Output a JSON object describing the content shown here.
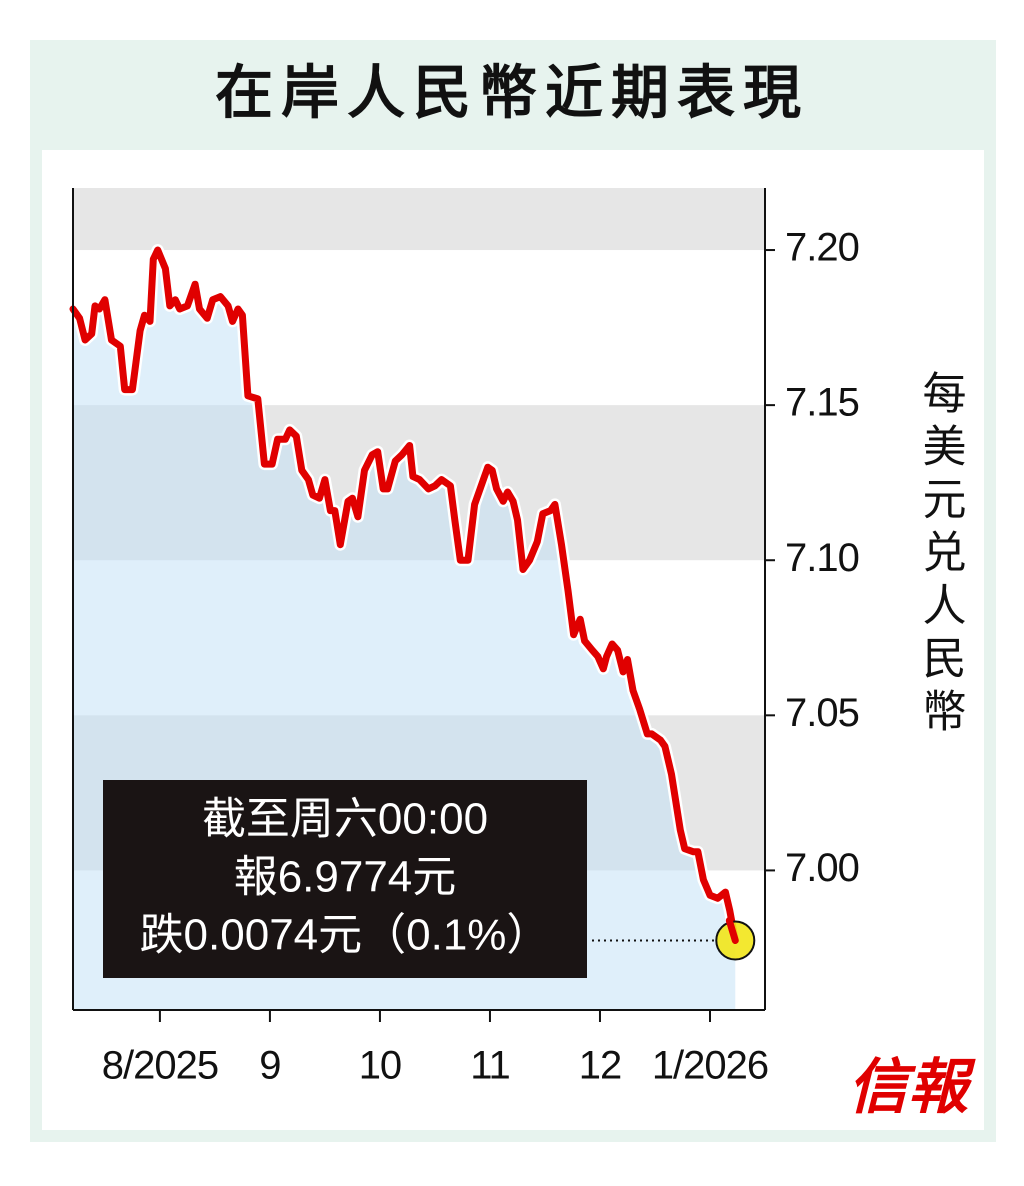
{
  "chart_data": {
    "type": "line",
    "title": "在岸人民幣近期表現",
    "y_axis_label": "每美元兑人民幣",
    "annotation": [
      "截至周六00:00",
      "報6.9774元",
      "跌0.0074元（0.1%）"
    ],
    "logo": "信報",
    "color": "#e00000",
    "area_color": "#bfe0f5",
    "band_color": "#e6e6e6",
    "x": [
      7.21,
      7.27,
      7.32,
      7.38,
      7.41,
      7.45,
      7.5,
      7.56,
      7.64,
      7.68,
      7.75,
      7.82,
      7.86,
      7.91,
      7.94,
      7.98,
      8.05,
      8.09,
      8.14,
      8.18,
      8.25,
      8.32,
      8.36,
      8.43,
      8.48,
      8.55,
      8.62,
      8.66,
      8.71,
      8.75,
      8.8,
      8.89,
      8.95,
      9.02,
      9.07,
      9.14,
      9.18,
      9.24,
      9.29,
      9.35,
      9.39,
      9.45,
      9.5,
      9.55,
      9.59,
      9.64,
      9.71,
      9.75,
      9.8,
      9.86,
      9.93,
      9.98,
      10.03,
      10.07,
      10.14,
      10.2,
      10.27,
      10.3,
      10.36,
      10.44,
      10.5,
      10.56,
      10.64,
      10.68,
      10.73,
      10.8,
      10.86,
      10.94,
      10.98,
      11.02,
      11.06,
      11.12,
      11.16,
      11.21,
      11.25,
      11.3,
      11.36,
      11.43,
      11.48,
      11.55,
      11.59,
      11.65,
      11.71,
      11.76,
      11.82,
      11.86,
      11.93,
      11.98,
      12.03,
      12.06,
      12.11,
      12.16,
      12.21,
      12.25,
      12.3,
      12.36,
      12.43,
      12.47,
      12.55,
      12.59,
      12.65,
      12.73,
      12.77,
      12.85,
      12.89,
      12.94,
      13.0,
      13.07,
      13.14,
      13.18,
      13.23
    ],
    "values": [
      7.181,
      7.178,
      7.171,
      7.173,
      7.182,
      7.181,
      7.184,
      7.171,
      7.169,
      7.155,
      7.155,
      7.174,
      7.179,
      7.177,
      7.197,
      7.2,
      7.194,
      7.182,
      7.184,
      7.181,
      7.182,
      7.189,
      7.181,
      7.178,
      7.184,
      7.185,
      7.182,
      7.177,
      7.181,
      7.179,
      7.153,
      7.152,
      7.131,
      7.131,
      7.139,
      7.139,
      7.142,
      7.14,
      7.129,
      7.126,
      7.121,
      7.12,
      7.126,
      7.116,
      7.116,
      7.105,
      7.119,
      7.12,
      7.114,
      7.129,
      7.134,
      7.135,
      7.123,
      7.123,
      7.132,
      7.134,
      7.137,
      7.127,
      7.126,
      7.123,
      7.124,
      7.126,
      7.124,
      7.113,
      7.1,
      7.1,
      7.118,
      7.126,
      7.13,
      7.129,
      7.123,
      7.119,
      7.122,
      7.119,
      7.113,
      7.097,
      7.1,
      7.106,
      7.115,
      7.116,
      7.118,
      7.105,
      7.09,
      7.076,
      7.081,
      7.074,
      7.071,
      7.069,
      7.065,
      7.069,
      7.073,
      7.071,
      7.064,
      7.068,
      7.058,
      7.052,
      7.044,
      7.044,
      7.042,
      7.04,
      7.031,
      7.013,
      7.007,
      7.006,
      7.006,
      6.997,
      6.992,
      6.991,
      6.993,
      6.987,
      6.9774
    ],
    "xlim": [
      7.21,
      13.5
    ],
    "xticks": [
      {
        "value": 8,
        "label": "8/2025"
      },
      9,
      10,
      11,
      12,
      {
        "value": 13,
        "label": "1/2026"
      }
    ],
    "ylim": [
      6.955,
      7.22
    ],
    "yticks": [
      {
        "value": 7.0,
        "label": "7.00"
      },
      7.05,
      {
        "value": 7.1,
        "label": "7.10"
      },
      7.15,
      {
        "value": 7.2,
        "label": "7.20"
      }
    ],
    "y_axis_side": "right",
    "highlight_last": true
  }
}
